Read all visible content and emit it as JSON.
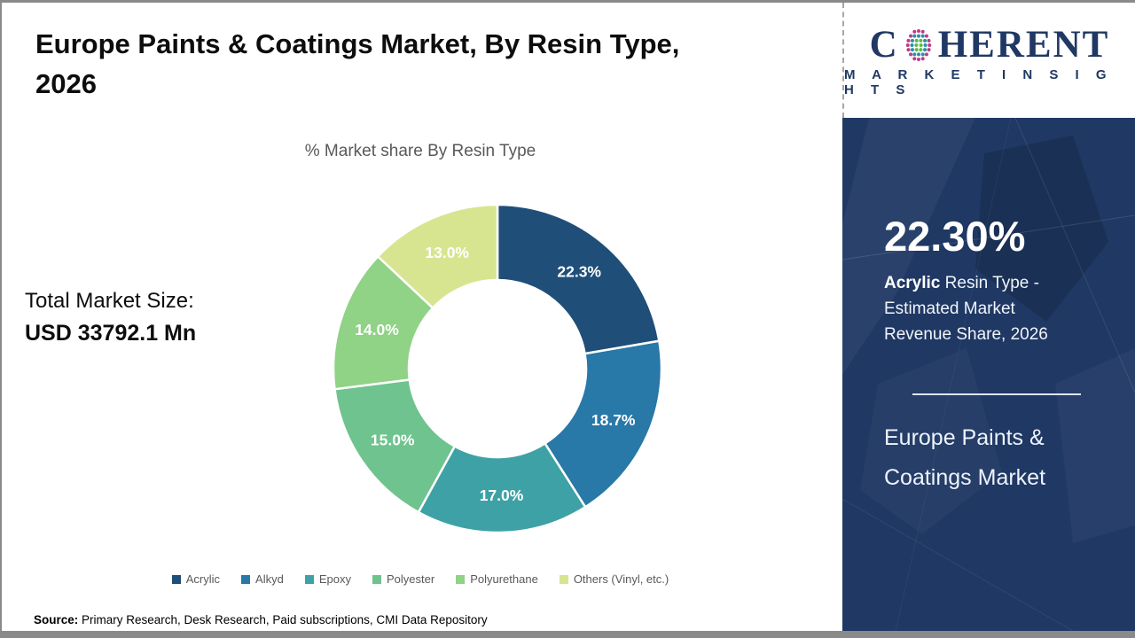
{
  "header": {
    "title_line1": "Europe Paints & Coatings Market, By Resin Type,",
    "title_line2": "2026",
    "logo": {
      "word_left": "C",
      "word_right": "HERENT",
      "subline": "M A R K E T   I N S I G H T S"
    }
  },
  "chart_data": {
    "type": "pie",
    "subtype": "donut",
    "title": "% Market share By Resin Type",
    "categories": [
      "Acrylic",
      "Alkyd",
      "Epoxy",
      "Polyester",
      "Polyurethane",
      "Others (Vinyl, etc.)"
    ],
    "values": [
      22.3,
      18.7,
      17.0,
      15.0,
      14.0,
      13.0
    ],
    "labels": [
      "22.3%",
      "18.7%",
      "17.0%",
      "15.0%",
      "14.0%",
      "13.0%"
    ],
    "colors": [
      "#1F4E79",
      "#2878A8",
      "#3EA1A5",
      "#6FC38E",
      "#90D286",
      "#D7E590"
    ],
    "start_angle_deg": 0,
    "direction": "clockwise",
    "legend_position": "bottom",
    "label_color": "#ffffff"
  },
  "left_panel": {
    "total_label": "Total Market Size:",
    "total_value": "USD 33792.1 Mn"
  },
  "sidebar": {
    "highlight_value": "22.30%",
    "highlight_bold": "Acrylic",
    "highlight_rest": " Resin Type - Estimated Market Revenue Share, 2026",
    "market_name_line1": "Europe Paints &",
    "market_name_line2": "Coatings Market",
    "bg_color": "#1F3864"
  },
  "footer": {
    "source_label": "Source:",
    "source_text": " Primary Research, Desk Research, Paid subscriptions, CMI Data Repository"
  }
}
